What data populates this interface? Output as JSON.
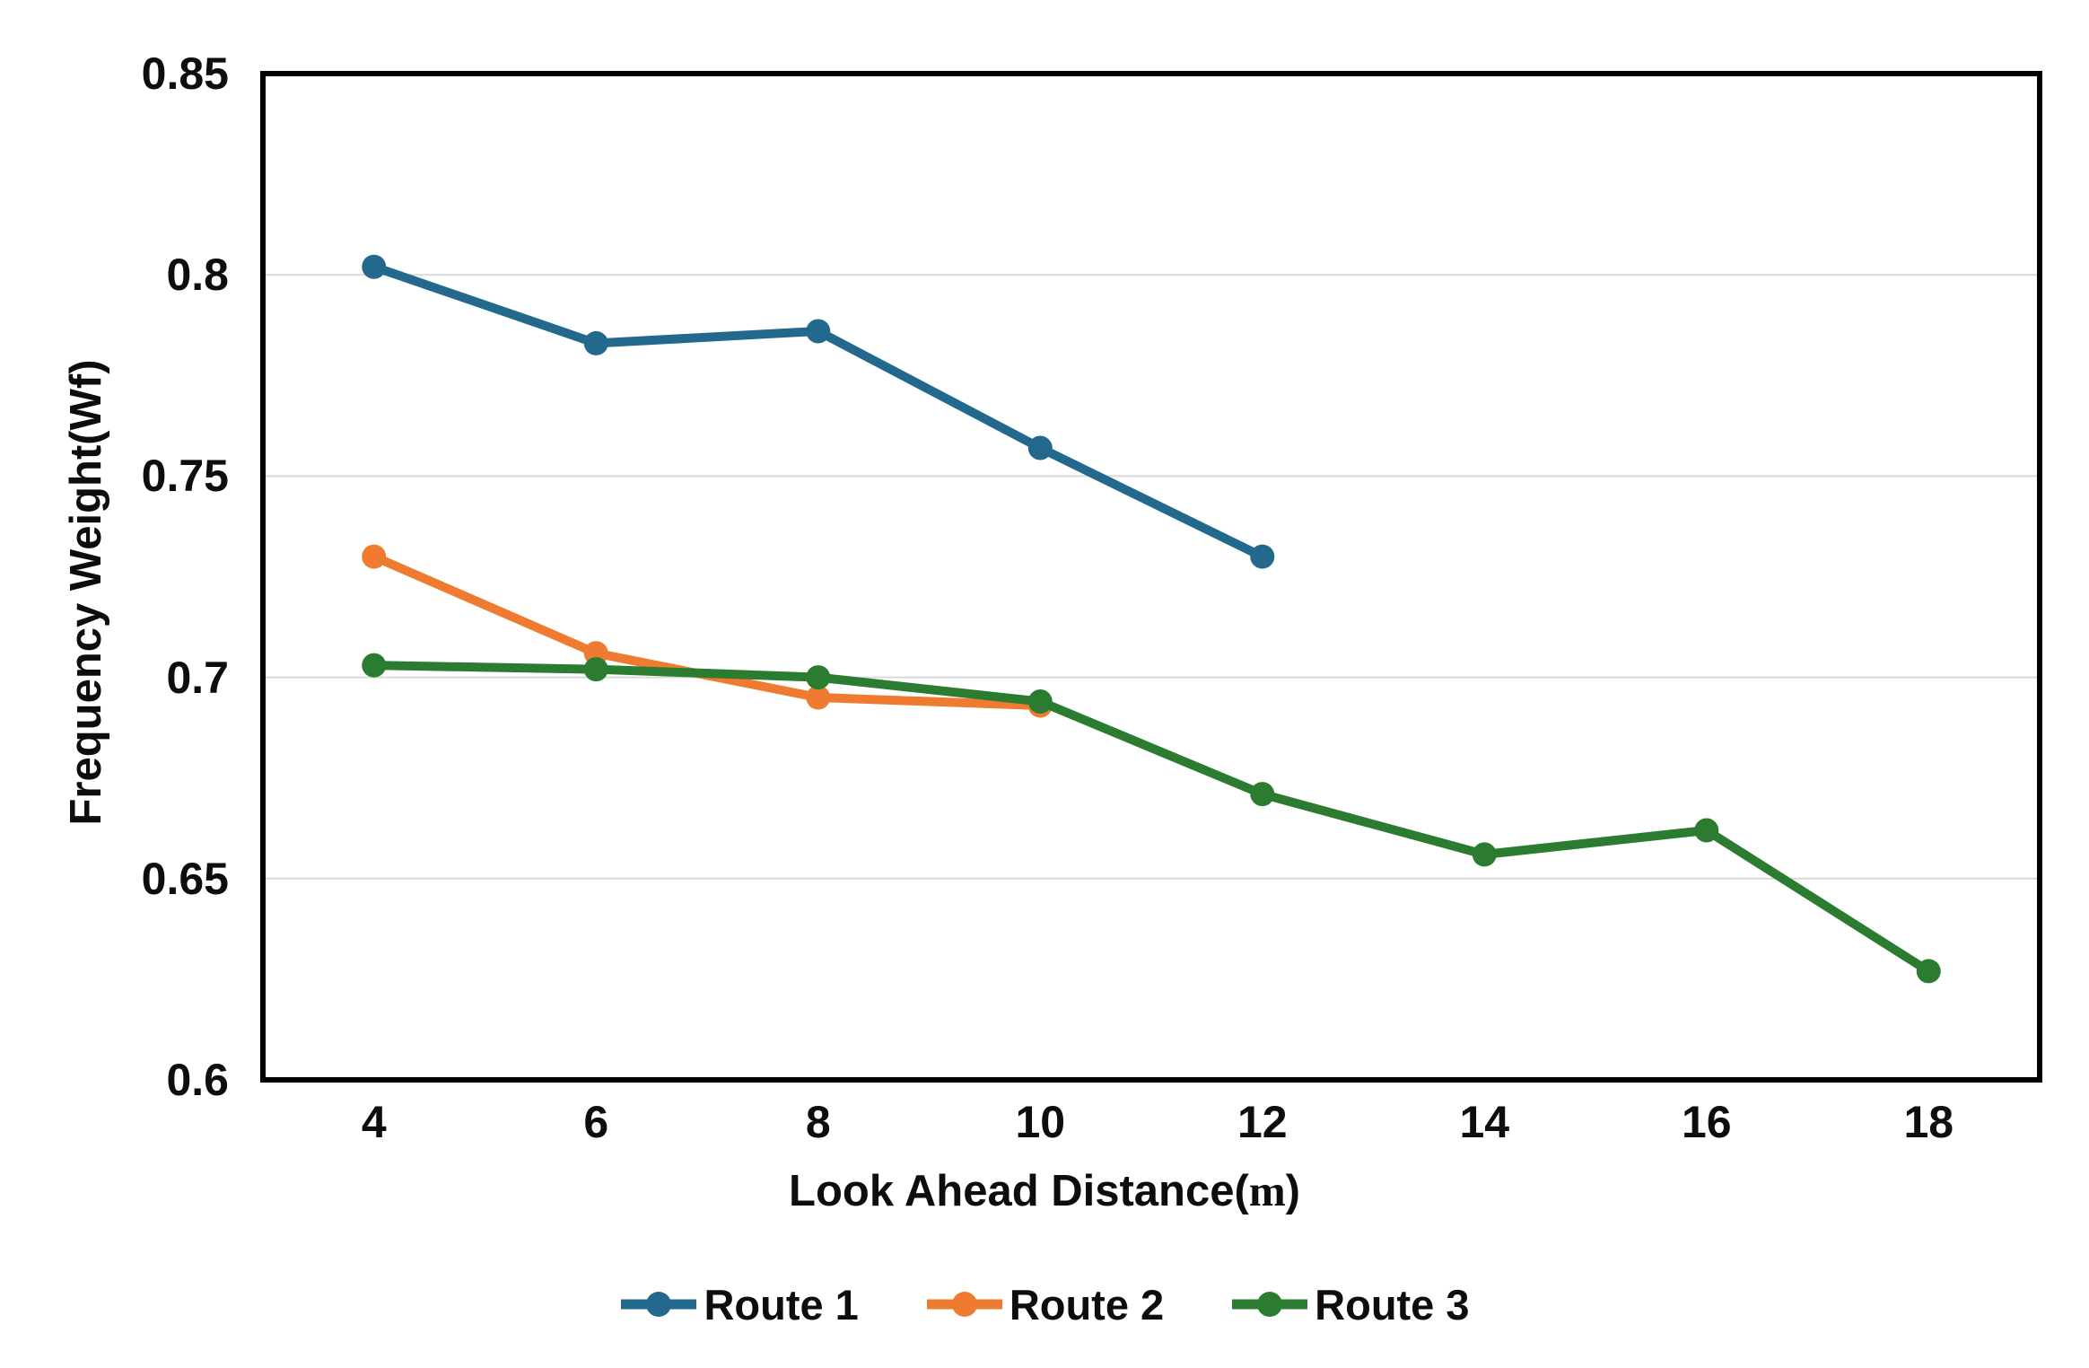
{
  "page": {
    "background": "#FFFFFF"
  },
  "chart_data": {
    "type": "line",
    "title": "",
    "xlabel": "Look Ahead Distance(m)",
    "xlabel_parts": [
      "Look Ahead Distance(",
      "m",
      ")"
    ],
    "ylabel": "Frequency Weight(Wf)",
    "xlim": [
      3,
      19
    ],
    "ylim": [
      0.6,
      0.85
    ],
    "x_ticks": [
      4,
      6,
      8,
      10,
      12,
      14,
      16,
      18
    ],
    "x_tick_labels": [
      "4",
      "6",
      "8",
      "10",
      "12",
      "14",
      "16",
      "18"
    ],
    "y_ticks": [
      0.85,
      0.8,
      0.75,
      0.7,
      0.65,
      0.6
    ],
    "y_tick_labels": [
      "0.85",
      "0.8",
      "0.75",
      "0.7",
      "0.65",
      "0.6"
    ],
    "grid": "horizontal",
    "grid_color": "#D9D9D9",
    "axis_color": "#000000",
    "plot_border": "black-box",
    "legend_position": "bottom",
    "series": [
      {
        "name": "Route 1",
        "color": "#23698E",
        "x": [
          4,
          6,
          8,
          10,
          12
        ],
        "values": [
          0.802,
          0.783,
          0.786,
          0.757,
          0.73
        ]
      },
      {
        "name": "Route 2",
        "color": "#EE7B30",
        "x": [
          4,
          6,
          8,
          10
        ],
        "values": [
          0.73,
          0.706,
          0.695,
          0.693
        ]
      },
      {
        "name": "Route 3",
        "color": "#2B7C31",
        "x": [
          4,
          6,
          8,
          10,
          12,
          14,
          16,
          18
        ],
        "values": [
          0.703,
          0.702,
          0.7,
          0.694,
          0.671,
          0.656,
          0.662,
          0.627
        ]
      }
    ]
  }
}
